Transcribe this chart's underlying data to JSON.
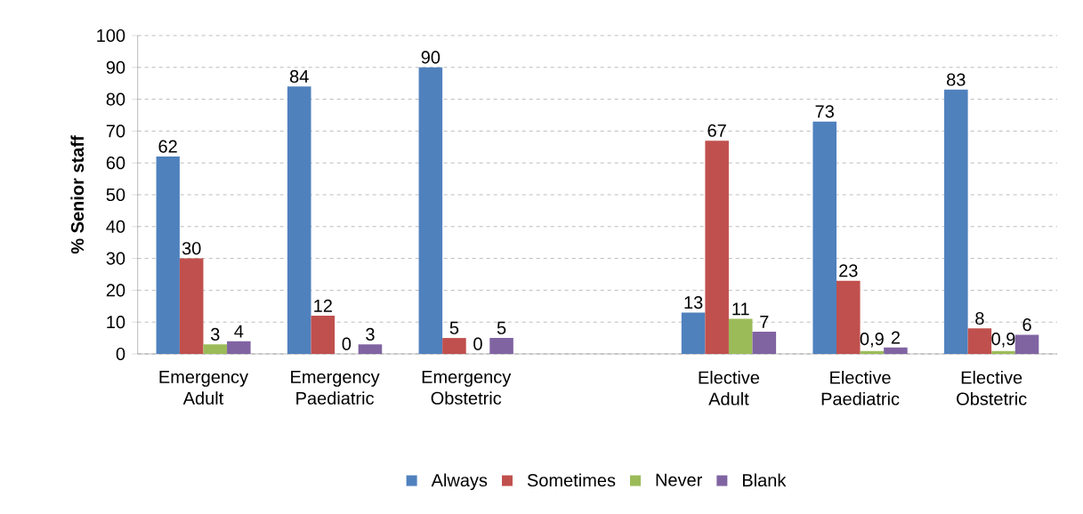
{
  "chart_data": {
    "type": "bar",
    "ylabel": "% Senior staff",
    "categories": [
      "Emergency Adult",
      "Emergency Paediatric",
      "Emergency Obstetric",
      null,
      "Elective Adult",
      "Elective Paediatric",
      "Elective Obstetric"
    ],
    "series": [
      {
        "name": "Always",
        "color": "#4f81bd",
        "values": [
          62,
          84,
          90,
          null,
          13,
          73,
          83
        ],
        "value_labels": [
          "62",
          "84",
          "90",
          null,
          "13",
          "73",
          "83"
        ]
      },
      {
        "name": "Sometimes",
        "color": "#c0504d",
        "values": [
          30,
          12,
          5,
          null,
          67,
          23,
          8
        ],
        "value_labels": [
          "30",
          "12",
          "5",
          null,
          "67",
          "23",
          "8"
        ]
      },
      {
        "name": "Never",
        "color": "#9bbb59",
        "values": [
          3,
          0,
          0,
          null,
          11,
          0.9,
          0.9
        ],
        "value_labels": [
          "3",
          "0",
          "0",
          null,
          "11",
          "0,9",
          "0,9"
        ]
      },
      {
        "name": "Blank",
        "color": "#8064a2",
        "values": [
          4,
          3,
          5,
          null,
          7,
          2,
          6
        ],
        "value_labels": [
          "4",
          "3",
          "5",
          null,
          "7",
          "2",
          "6"
        ]
      }
    ],
    "ylim": [
      0,
      100
    ],
    "yticks": [
      0,
      10,
      20,
      30,
      40,
      50,
      60,
      70,
      80,
      90,
      100
    ],
    "grid": "y",
    "legend": "bottom"
  }
}
